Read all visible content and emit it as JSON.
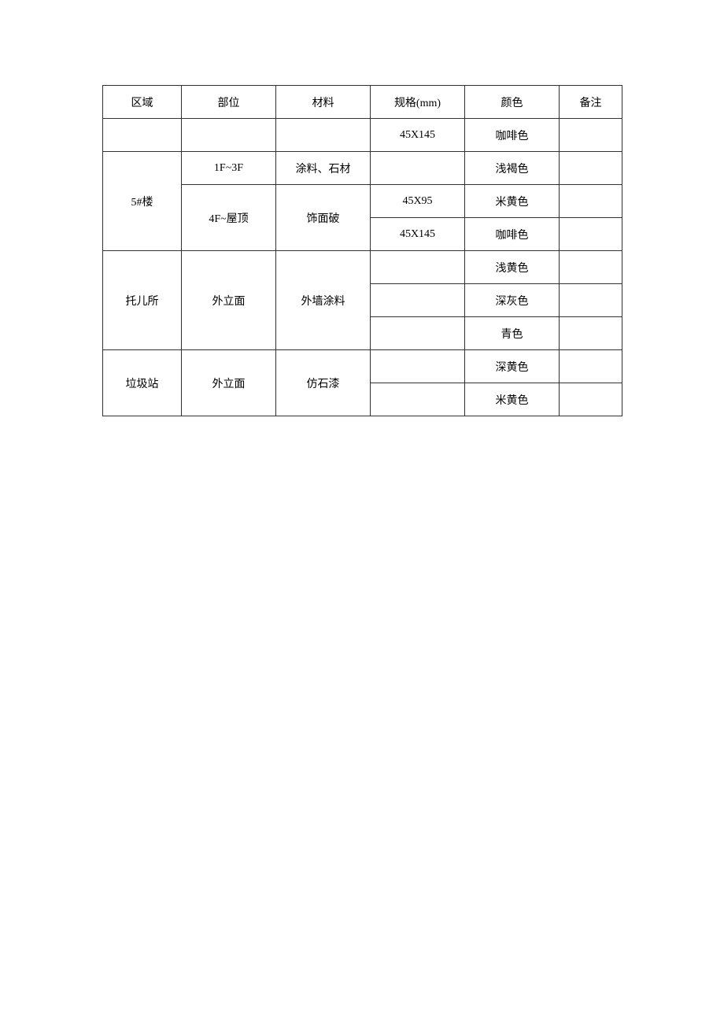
{
  "table": {
    "headers": {
      "area": "区域",
      "part": "部位",
      "material": "材料",
      "spec": "规格(mm)",
      "color": "颜色",
      "note": "备注"
    },
    "row1": {
      "area": "",
      "part": "",
      "material": "",
      "spec": "45X145",
      "color": "咖啡色",
      "note": ""
    },
    "row2": {
      "part": "1F~3F",
      "material": "涂料、石材",
      "spec": "",
      "color": "浅褐色",
      "note": ""
    },
    "row_5lou_area": "5#楼",
    "row3": {
      "part": "4F~屋顶",
      "material": "饰面破",
      "spec": "45X95",
      "color": "米黄色",
      "note": ""
    },
    "row4": {
      "spec": "45X145",
      "color": "咖啡色",
      "note": ""
    },
    "row_tuoersuo_area": "托儿所",
    "row_tuoersuo_part": "外立面",
    "row_tuoersuo_material": "外墙涂料",
    "row5": {
      "spec": "",
      "color": "浅黄色",
      "note": ""
    },
    "row6": {
      "spec": "",
      "color": "深灰色",
      "note": ""
    },
    "row7": {
      "spec": "",
      "color": "青色",
      "note": ""
    },
    "row_lajizhan_area": "垃圾站",
    "row_lajizhan_part": "外立面",
    "row_lajizhan_material": "仿石漆",
    "row8": {
      "spec": "",
      "color": "深黄色",
      "note": ""
    },
    "row9": {
      "spec": "",
      "color": "米黄色",
      "note": ""
    }
  }
}
